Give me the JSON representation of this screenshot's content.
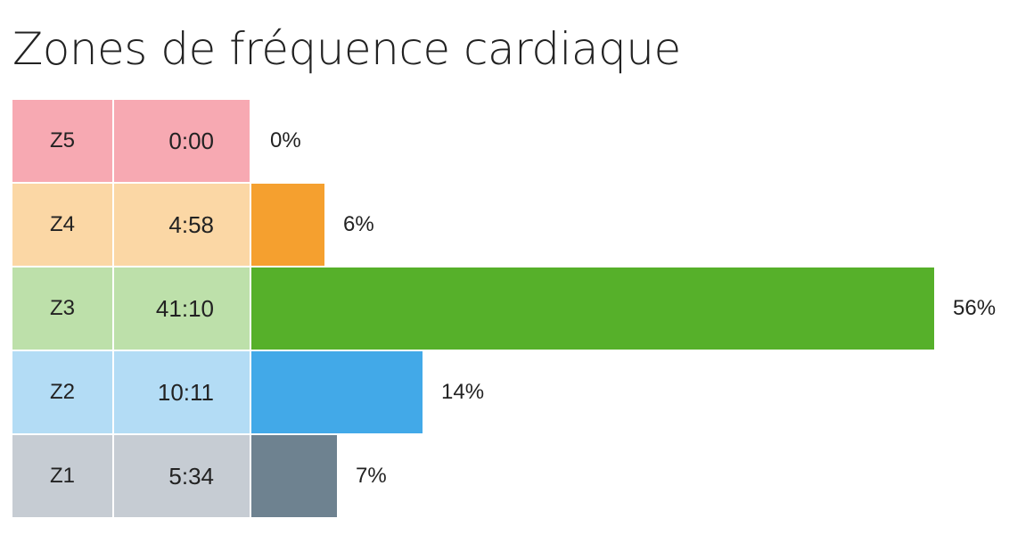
{
  "chart_data": {
    "type": "bar",
    "title": "Zones de fréquence cardiaque",
    "rows": [
      {
        "zone": "Z5",
        "time": "0:00",
        "percent": 0,
        "percent_label": "0%",
        "light_color": "#f7a9b2",
        "bar_color": "#e8556a"
      },
      {
        "zone": "Z4",
        "time": "4:58",
        "percent": 6,
        "percent_label": "6%",
        "light_color": "#fbd7a5",
        "bar_color": "#f5a02f"
      },
      {
        "zone": "Z3",
        "time": "41:10",
        "percent": 56,
        "percent_label": "56%",
        "light_color": "#bde0aa",
        "bar_color": "#56b02a"
      },
      {
        "zone": "Z2",
        "time": "10:11",
        "percent": 14,
        "percent_label": "14%",
        "light_color": "#b3dcf5",
        "bar_color": "#42a9e8"
      },
      {
        "zone": "Z1",
        "time": "5:34",
        "percent": 7,
        "percent_label": "7%",
        "light_color": "#c6ccd3",
        "bar_color": "#6e8290"
      }
    ],
    "xlim": [
      0,
      56
    ]
  }
}
